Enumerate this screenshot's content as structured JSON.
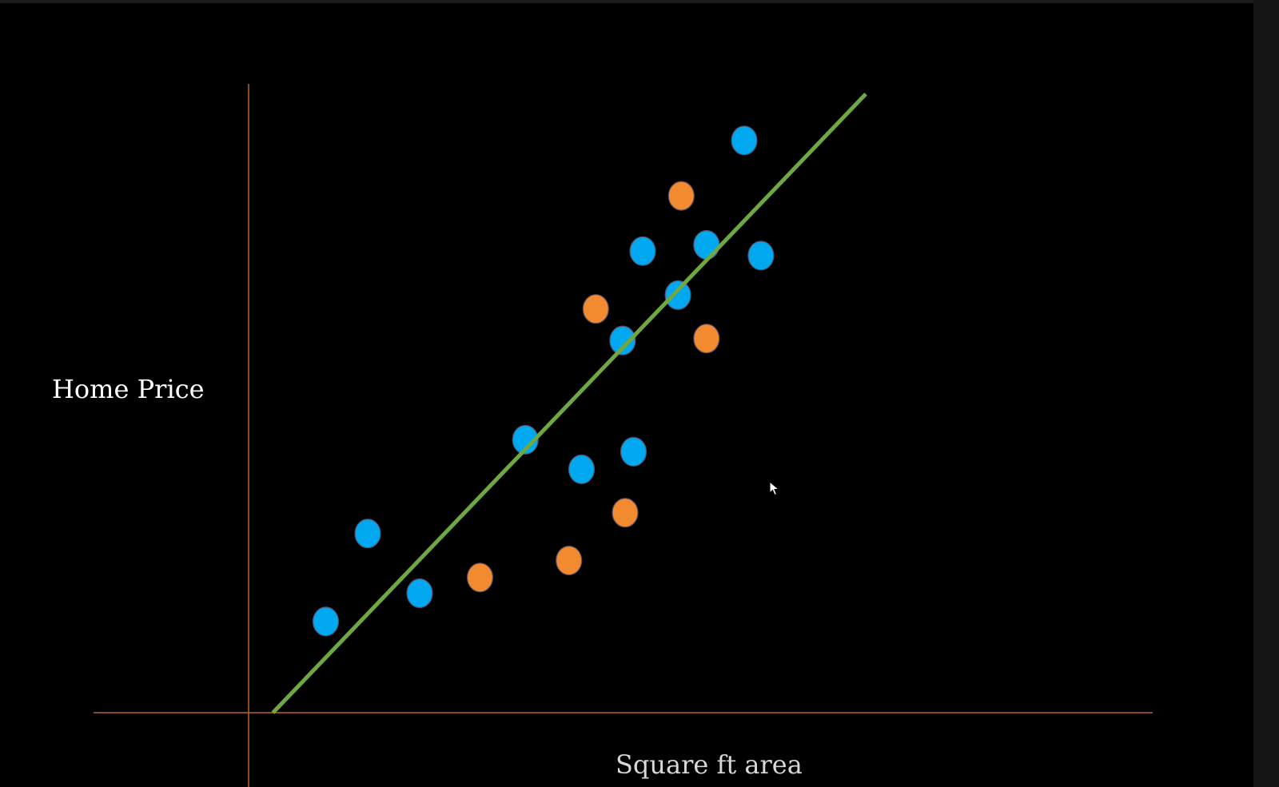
{
  "chart_data": {
    "type": "scatter",
    "title": "",
    "xlabel": "Square ft area",
    "ylabel": "Home Price",
    "xlim": [
      0,
      100
    ],
    "ylim": [
      0,
      100
    ],
    "grid": false,
    "legend": "none",
    "colors": {
      "background": "#000000",
      "axis": "#b5652a",
      "fit_line": "#6fa843",
      "training_points": "#00a9ef",
      "test_points": "#f28b30"
    },
    "series": [
      {
        "values": [
          {
            "x": 9.2,
            "y": 14.5
          },
          {
            "x": 14.2,
            "y": 28.5
          },
          {
            "x": 20.4,
            "y": 19.0
          },
          {
            "x": 33.0,
            "y": 43.4
          },
          {
            "x": 39.7,
            "y": 38.7
          },
          {
            "x": 45.9,
            "y": 41.5
          },
          {
            "x": 44.6,
            "y": 59.2
          },
          {
            "x": 47.0,
            "y": 73.4
          },
          {
            "x": 51.2,
            "y": 66.4
          },
          {
            "x": 54.6,
            "y": 74.4
          },
          {
            "x": 59.1,
            "y": 91.0
          },
          {
            "x": 61.1,
            "y": 72.7
          }
        ]
      },
      {
        "values": [
          {
            "x": 27.6,
            "y": 21.5
          },
          {
            "x": 38.2,
            "y": 24.2
          },
          {
            "x": 44.9,
            "y": 31.8
          },
          {
            "x": 41.4,
            "y": 64.2
          },
          {
            "x": 51.6,
            "y": 82.2
          },
          {
            "x": 54.6,
            "y": 59.5
          }
        ]
      }
    ],
    "fit_line": {
      "x": [
        2.9,
        73.6
      ],
      "y": [
        0.0,
        98.4
      ]
    }
  }
}
